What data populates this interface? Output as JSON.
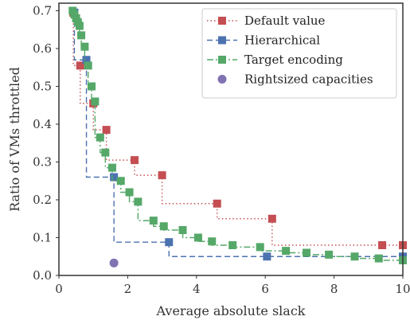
{
  "chart_data": {
    "type": "line",
    "xlabel": "Average absolute slack",
    "ylabel": "Ratio of VMs throttled",
    "xlim": [
      0,
      10
    ],
    "ylim": [
      0,
      0.72
    ],
    "xticks": [
      0,
      2,
      4,
      6,
      8,
      10
    ],
    "yticks": [
      0.0,
      0.1,
      0.2,
      0.3,
      0.4,
      0.5,
      0.6,
      0.7
    ],
    "grid": false,
    "legend_position": "top-right",
    "series": [
      {
        "name": "Default value",
        "color": "#c44e52",
        "line_style": "dotted",
        "marker": "square",
        "step": true,
        "x": [
          0.42,
          0.62,
          1.0,
          1.38,
          2.2,
          3.0,
          4.6,
          6.2,
          9.4,
          10.0
        ],
        "y": [
          0.695,
          0.555,
          0.455,
          0.385,
          0.305,
          0.265,
          0.19,
          0.15,
          0.08,
          0.08
        ]
      },
      {
        "name": "Hierarchical",
        "color": "#4c72b0",
        "line_style": "dashed",
        "marker": "square",
        "step": true,
        "x": [
          0.45,
          0.8,
          1.6,
          3.2,
          6.05,
          10.0
        ],
        "y": [
          0.695,
          0.57,
          0.26,
          0.088,
          0.05,
          0.05
        ]
      },
      {
        "name": "Target encoding",
        "color": "#55a868",
        "line_style": "dashdot",
        "marker": "square",
        "step": true,
        "x": [
          0.4,
          0.45,
          0.5,
          0.55,
          0.6,
          0.65,
          0.75,
          0.85,
          0.95,
          1.05,
          1.2,
          1.35,
          1.55,
          1.8,
          2.05,
          2.3,
          2.75,
          3.05,
          3.6,
          4.05,
          4.45,
          5.05,
          5.85,
          6.6,
          7.2,
          7.85,
          8.6,
          9.3,
          10.0
        ],
        "y": [
          0.7,
          0.69,
          0.68,
          0.67,
          0.66,
          0.635,
          0.605,
          0.555,
          0.5,
          0.46,
          0.365,
          0.325,
          0.285,
          0.25,
          0.22,
          0.195,
          0.145,
          0.13,
          0.12,
          0.1,
          0.09,
          0.08,
          0.075,
          0.065,
          0.06,
          0.055,
          0.05,
          0.045,
          0.04
        ]
      },
      {
        "name": "Rightsized capacities",
        "color": "#8172b2",
        "line_style": "none",
        "marker": "circle",
        "step": false,
        "x": [
          1.6
        ],
        "y": [
          0.033
        ]
      }
    ]
  }
}
